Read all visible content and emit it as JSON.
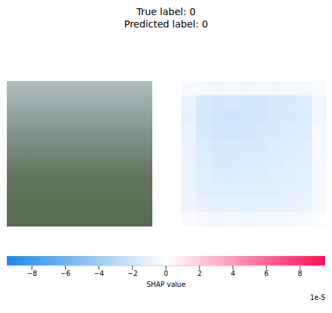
{
  "chart_data": {
    "type": "shap_image",
    "title": "True label: 0\nPredicted label: 0",
    "heatmap": {
      "cells": [
        [
          -4e-06,
          -5e-06,
          -6e-06,
          -5e-06,
          -6e-06,
          -5e-06,
          -6e-06,
          -5e-06,
          -5e-06,
          -3e-06
        ],
        [
          -9e-06,
          -1.6e-05,
          -1.8e-05,
          -1.7e-05,
          -1.9e-05,
          -1.8e-05,
          -1.7e-05,
          -1.6e-05,
          -1.4e-05,
          -6e-06
        ],
        [
          -1e-05,
          -1.7e-05,
          -1.9e-05,
          -2e-05,
          -1.9e-05,
          -1.8e-05,
          -1.7e-05,
          -1.6e-05,
          -1.5e-05,
          -6e-06
        ],
        [
          -9e-06,
          -1.6e-05,
          -1.8e-05,
          -1.9e-05,
          -1.8e-05,
          -1.7e-05,
          -1.6e-05,
          -1.5e-05,
          -1.4e-05,
          -5e-06
        ],
        [
          -9e-06,
          -1.5e-05,
          -1.7e-05,
          -1.7e-05,
          -1.6e-05,
          -1.6e-05,
          -1.5e-05,
          -1.4e-05,
          -1.3e-05,
          -5e-06
        ],
        [
          -8e-06,
          -1.4e-05,
          -1.6e-05,
          -1.6e-05,
          -1.5e-05,
          -1.5e-05,
          -1.4e-05,
          -1.3e-05,
          -1.2e-05,
          -5e-06
        ],
        [
          -8e-06,
          -1.3e-05,
          -1.5e-05,
          -1.5e-05,
          -1.4e-05,
          -1.4e-05,
          -1.3e-05,
          -1.2e-05,
          -1.1e-05,
          -4e-06
        ],
        [
          -7e-06,
          -1.2e-05,
          -1.3e-05,
          -1.3e-05,
          -1.3e-05,
          -1.2e-05,
          -1.2e-05,
          -1.1e-05,
          -1e-05,
          -4e-06
        ],
        [
          -7e-06,
          -1e-05,
          -1.1e-05,
          -1.1e-05,
          -1.1e-05,
          -1e-05,
          -1e-05,
          -1e-05,
          -9e-06,
          -4e-06
        ],
        [
          -3e-06,
          -5e-06,
          -6e-06,
          -5e-06,
          -6e-06,
          -5e-06,
          -5e-06,
          -5e-06,
          -4e-06,
          -2e-06
        ]
      ]
    },
    "colorbar": {
      "label": "SHAP value",
      "offset_label": "1e-5",
      "range": [
        -9.5e-05,
        9.5e-05
      ],
      "ticks": [
        {
          "value": -8e-05,
          "label": "−8"
        },
        {
          "value": -6e-05,
          "label": "−6"
        },
        {
          "value": -4e-05,
          "label": "−4"
        },
        {
          "value": -2e-05,
          "label": "−2"
        },
        {
          "value": 0,
          "label": "0"
        },
        {
          "value": 2e-05,
          "label": "2"
        },
        {
          "value": 4e-05,
          "label": "4"
        },
        {
          "value": 6e-05,
          "label": "6"
        },
        {
          "value": 8e-05,
          "label": "8"
        }
      ],
      "colors": [
        "#1e88e5",
        "#ffffff",
        "#ff0d57"
      ]
    }
  }
}
